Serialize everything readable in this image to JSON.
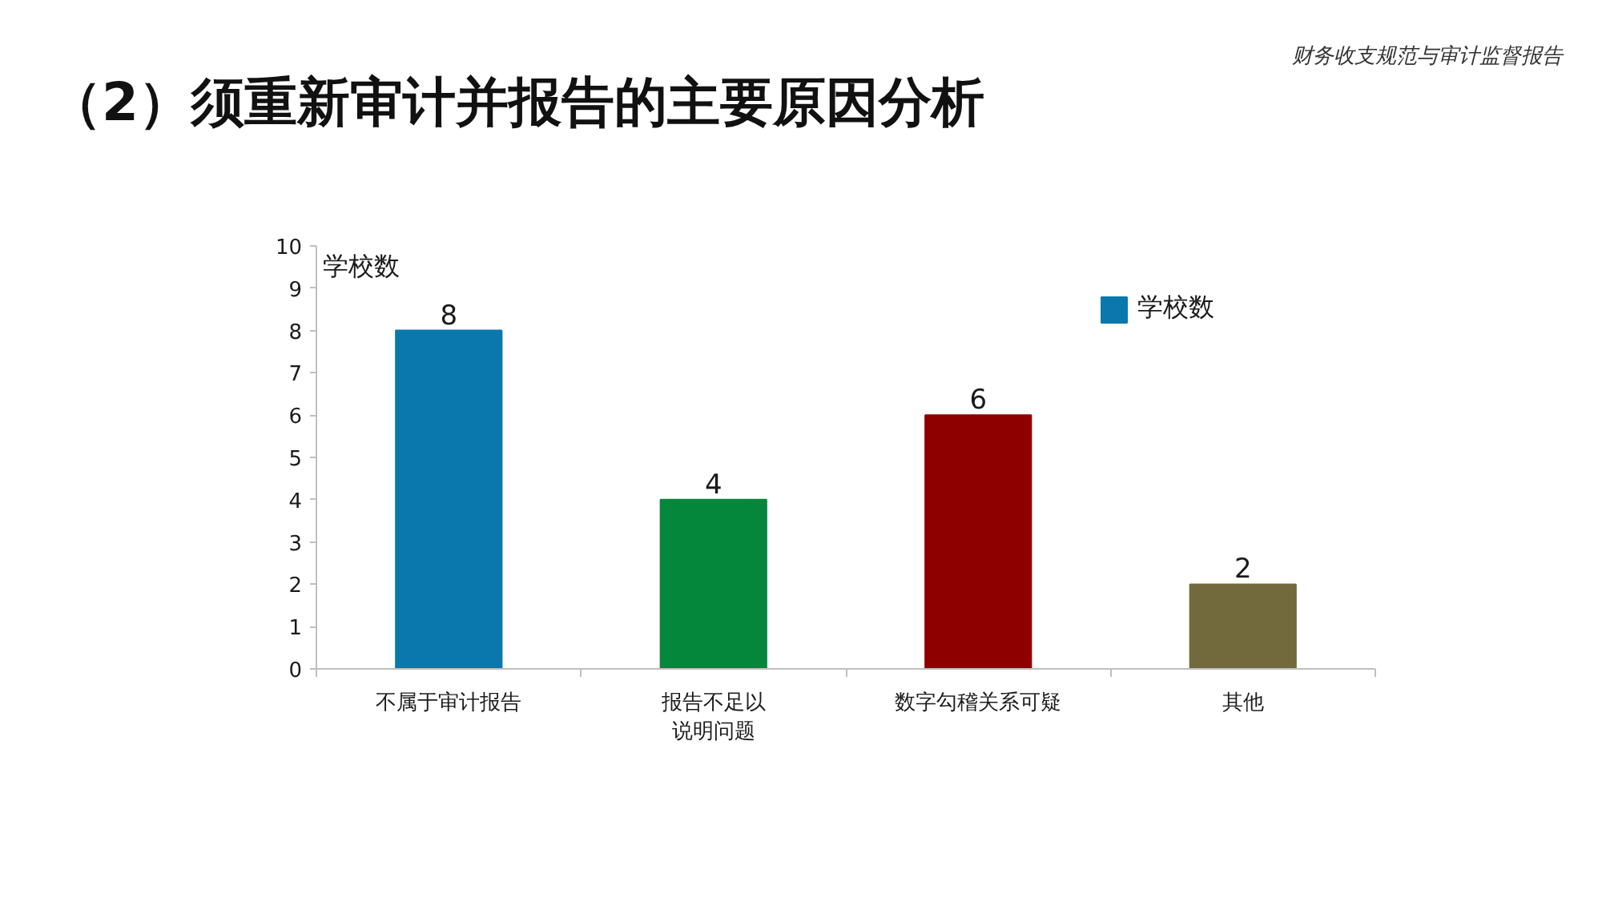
{
  "chart_data": {
    "type": "bar",
    "title": "（2）须重新审计并报告的主要原因分析",
    "annotations": [
      "财务收支规范与审计监督报告"
    ],
    "ylabel": "学校数",
    "categories": [
      "不属于审计报告",
      "报告不足以说明问题",
      "数字勾稽关系可疑",
      "其他"
    ],
    "series": [
      {
        "name": "学校数",
        "colors": [
          "#0a78ad",
          "#04873a",
          "#8e0000",
          "#726a3c"
        ],
        "values": [
          8,
          4,
          6,
          2
        ]
      }
    ],
    "ylim": [
      0,
      10
    ],
    "yticks": [
      0,
      1,
      2,
      3,
      4,
      5,
      6,
      7,
      8,
      9,
      10
    ],
    "data_labels": true,
    "legend": "top right"
  }
}
